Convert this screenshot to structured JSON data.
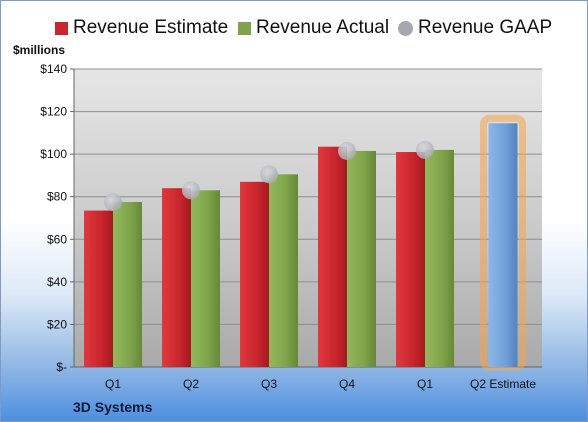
{
  "legend": {
    "estimate_label": "Revenue Estimate",
    "actual_label": "Revenue Actual",
    "gaap_label": "Revenue GAAP"
  },
  "units_label": "$millions",
  "company": "3D Systems",
  "colors": {
    "estimate": "#c9252c",
    "actual": "#7fa34a",
    "gaap": "#a6a8b0",
    "forecast": "#6f9fd8",
    "forecast_glow": "#f5a64a"
  },
  "chart_data": {
    "type": "bar",
    "title": "",
    "xlabel": "",
    "ylabel": "$millions",
    "ylim": [
      0,
      140
    ],
    "yticks": [
      0,
      20,
      40,
      60,
      80,
      100,
      120,
      140
    ],
    "ytick_labels": [
      "$-",
      "$20",
      "$40",
      "$60",
      "$80",
      "$100",
      "$120",
      "$140"
    ],
    "categories": [
      "Q1",
      "Q2",
      "Q3",
      "Q4",
      "Q1",
      "Q2 Estimate"
    ],
    "series": [
      {
        "name": "Revenue Estimate",
        "kind": "bar",
        "values": [
          73.5,
          84,
          87,
          103.5,
          101,
          114.5
        ]
      },
      {
        "name": "Revenue Actual",
        "kind": "bar",
        "values": [
          77.5,
          83,
          90.5,
          101.5,
          102,
          null
        ]
      },
      {
        "name": "Revenue GAAP",
        "kind": "marker",
        "values": [
          77.5,
          83,
          90.5,
          101.5,
          102,
          null
        ]
      }
    ],
    "grid": true,
    "legend_position": "top"
  }
}
